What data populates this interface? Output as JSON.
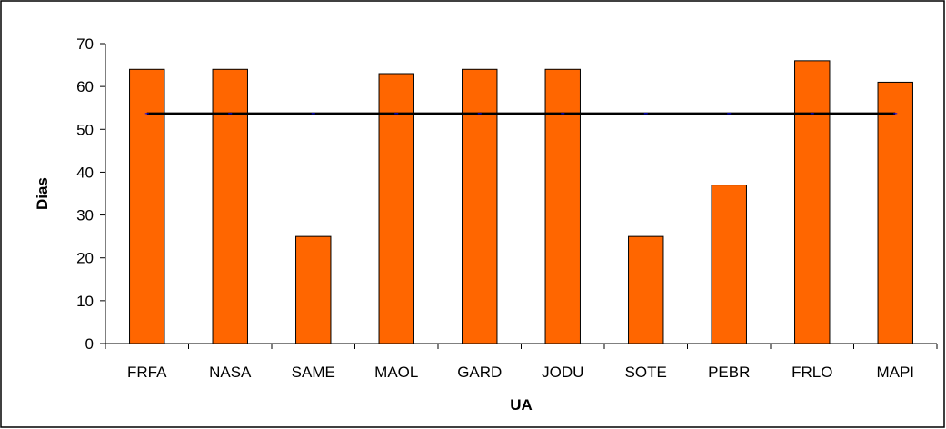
{
  "chart_data": {
    "type": "bar",
    "xlabel": "UA",
    "ylabel": "Dias",
    "categories": [
      "FRFA",
      "NASA",
      "SAME",
      "MAOL",
      "GARD",
      "JODU",
      "SOTE",
      "PEBR",
      "FRLO",
      "MAPI"
    ],
    "series": [
      {
        "values": [
          64,
          64,
          25,
          63,
          64,
          64,
          25,
          37,
          66,
          61
        ]
      }
    ],
    "reference_line": {
      "value": 53.7
    },
    "ylim": [
      0,
      70
    ],
    "yticks": [
      0,
      10,
      20,
      30,
      40,
      50,
      60,
      70
    ],
    "grid": false,
    "legend": "none",
    "colors": {
      "bar": "#FF6600",
      "bar_outline": "#000000",
      "line": "#000000",
      "marker": "#0000FF"
    }
  }
}
